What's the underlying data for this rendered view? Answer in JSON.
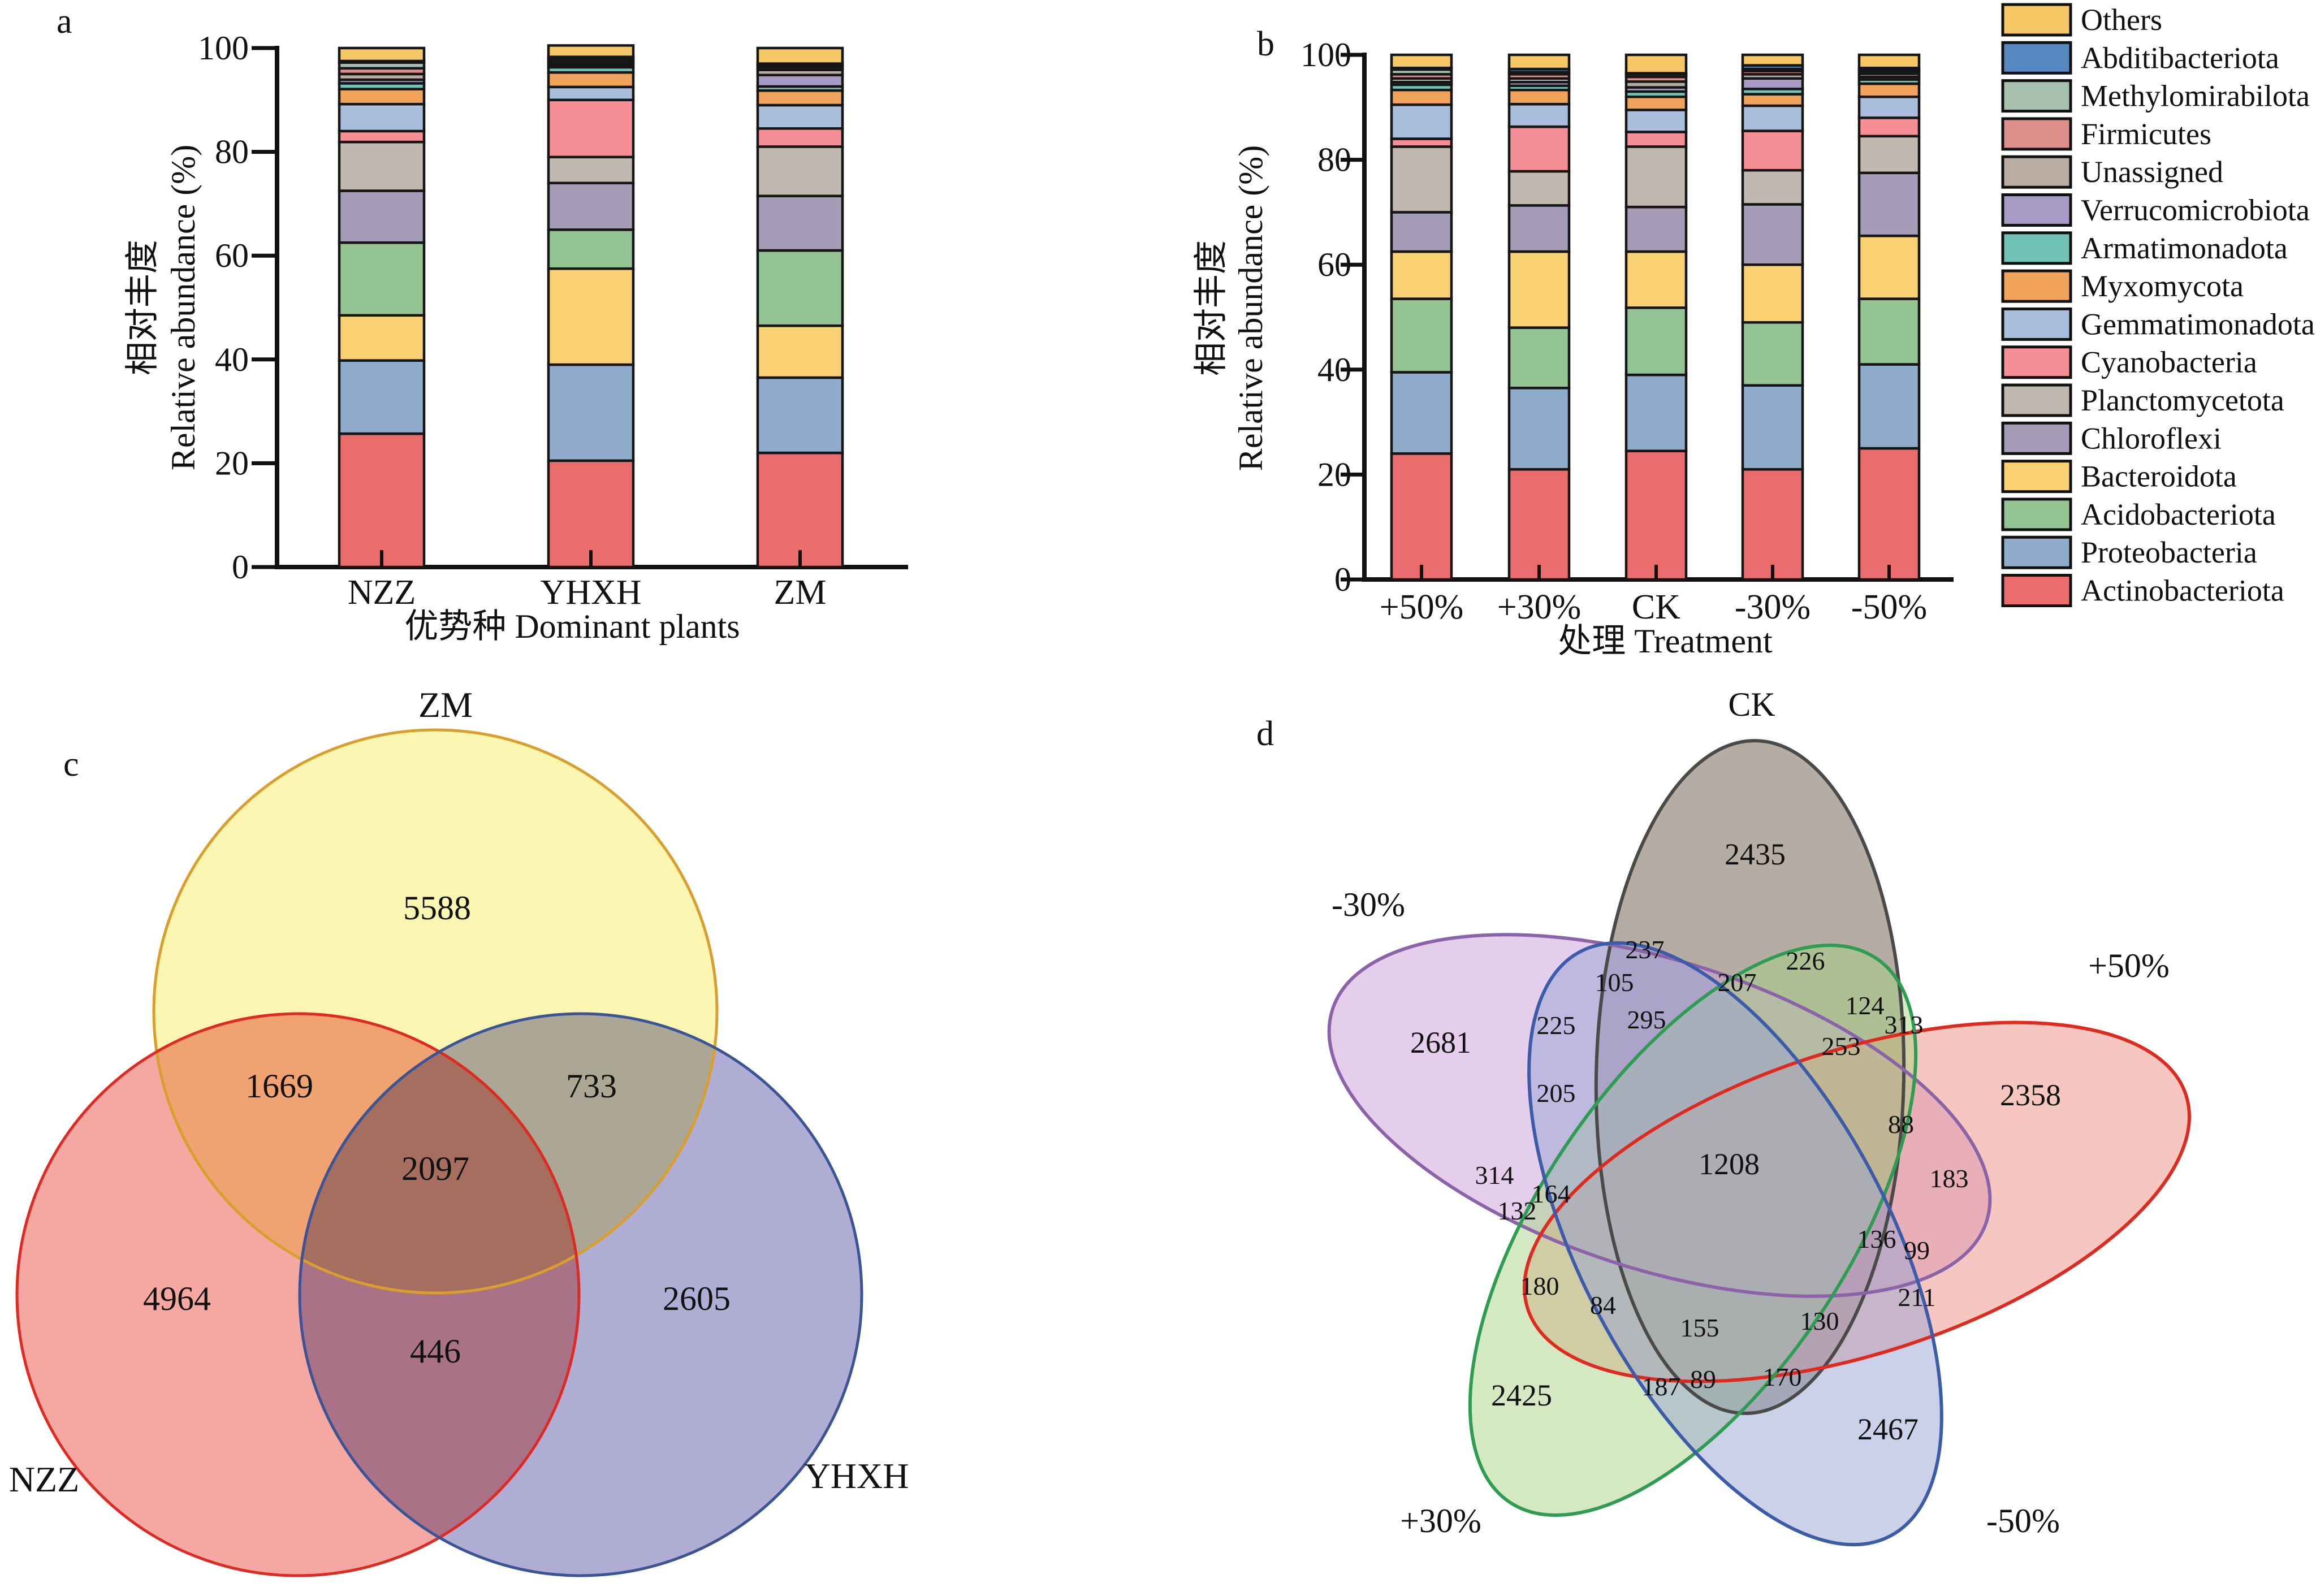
{
  "panels": {
    "a": "a",
    "b": "b",
    "c": "c",
    "d": "d"
  },
  "palette": {
    "Others": "#F6C865",
    "Abditibacteriota": "#5488BE",
    "Methylomirabilota": "#A6BFAE",
    "Firmicutes": "#DE8F8C",
    "Unassigned": "#B9ACA2",
    "Verrucomicrobiota": "#A79BC6",
    "Armatimonadota": "#72C3B5",
    "Myxomycota": "#F2A35B",
    "Gemmatimonadota": "#A8BEDC",
    "Cyanobacteria": "#F68E96",
    "Planctomycetota": "#C1B8B0",
    "Chloroflexi": "#A59CB7",
    "Bacteroidota": "#F9D172",
    "Acidobacteriota": "#94C493",
    "Proteobacteria": "#90ACCC",
    "Actinobacteriota": "#EA6C6D"
  },
  "legend": {
    "items": [
      "Others",
      "Abditibacteriota",
      "Methylomirabilota",
      "Firmicutes",
      "Unassigned",
      "Verrucomicrobiota",
      "Armatimonadota",
      "Myxomycota",
      "Gemmatimonadota",
      "Cyanobacteria",
      "Planctomycetota",
      "Chloroflexi",
      "Bacteroidota",
      "Acidobacteriota",
      "Proteobacteria",
      "Actinobacteriota"
    ]
  },
  "chart_data": [
    {
      "id": "panel-a",
      "type": "bar",
      "stacked": true,
      "xlabel": "优势种 Dominant plants",
      "ylabel_lines": [
        "相对丰度",
        "Relative abundance (%)"
      ],
      "ylim": [
        0,
        100
      ],
      "yticks": [
        0,
        20,
        40,
        60,
        80,
        100
      ],
      "categories": [
        "NZZ",
        "YHXH",
        "ZM"
      ],
      "stack_order": [
        "Actinobacteriota",
        "Proteobacteria",
        "Bacteroidota",
        "Acidobacteriota",
        "Chloroflexi",
        "Planctomycetota",
        "Cyanobacteria",
        "Gemmatimonadota",
        "Myxomycota",
        "Armatimonadota",
        "Verrucomicrobiota",
        "Unassigned",
        "Firmicutes",
        "Methylomirabilota",
        "Abditibacteriota",
        "Others"
      ],
      "values_by_category": {
        "NZZ": [
          25.7,
          14.1,
          8.7,
          14.0,
          10.0,
          9.4,
          2.1,
          5.2,
          2.9,
          1.1,
          0.7,
          1.1,
          1.1,
          1.1,
          0.3,
          2.5
        ],
        "YHXH": [
          20.5,
          18.5,
          18.5,
          7.5,
          9.0,
          5.0,
          11.0,
          2.5,
          2.8,
          1.0,
          0.4,
          0.4,
          0.5,
          0.4,
          0.3,
          2.2
        ],
        "ZM": [
          22.0,
          14.5,
          10.0,
          14.5,
          10.5,
          9.5,
          3.5,
          4.5,
          2.8,
          0.8,
          2.2,
          1.0,
          0.5,
          0.4,
          0.3,
          3.0
        ]
      }
    },
    {
      "id": "panel-b",
      "type": "bar",
      "stacked": true,
      "xlabel": "处理 Treatment",
      "ylabel_lines": [
        "相对丰度",
        "Relative abundance (%)"
      ],
      "ylim": [
        0,
        100
      ],
      "yticks": [
        0,
        20,
        40,
        60,
        80,
        100
      ],
      "categories": [
        "+50%",
        "+30%",
        "CK",
        "-30%",
        "-50%"
      ],
      "stack_order": [
        "Actinobacteriota",
        "Proteobacteria",
        "Acidobacteriota",
        "Bacteroidota",
        "Chloroflexi",
        "Planctomycetota",
        "Cyanobacteria",
        "Gemmatimonadota",
        "Myxomycota",
        "Armatimonadota",
        "Verrucomicrobiota",
        "Unassigned",
        "Firmicutes",
        "Methylomirabilota",
        "Abditibacteriota",
        "Others"
      ],
      "values_by_category": {
        "+50%": [
          24.0,
          15.5,
          14.0,
          9.0,
          7.5,
          12.5,
          1.5,
          6.5,
          2.8,
          1.0,
          0.5,
          0.7,
          0.8,
          0.9,
          0.3,
          2.5
        ],
        "+30%": [
          21.0,
          15.5,
          11.5,
          14.5,
          8.8,
          6.5,
          8.5,
          4.3,
          2.7,
          0.8,
          0.7,
          0.7,
          0.8,
          0.4,
          0.6,
          2.7
        ],
        "CK": [
          24.5,
          14.5,
          12.8,
          10.7,
          8.5,
          11.5,
          2.8,
          4.2,
          2.5,
          1.0,
          0.8,
          1.1,
          0.9,
          0.5,
          0.2,
          3.5
        ],
        "-30%": [
          21.0,
          16.0,
          12.0,
          11.0,
          11.5,
          6.5,
          7.5,
          4.8,
          2.2,
          1.0,
          2.0,
          0.8,
          0.6,
          0.4,
          0.7,
          2.0
        ],
        "-50%": [
          25.0,
          16.0,
          12.5,
          12.0,
          12.0,
          7.0,
          3.5,
          4.0,
          2.5,
          0.8,
          0.5,
          0.6,
          0.4,
          0.4,
          0.3,
          2.5
        ]
      }
    },
    {
      "id": "panel-c",
      "type": "venn",
      "sets": [
        "ZM",
        "NZZ",
        "YHXH"
      ],
      "regions": {
        "ZM_only": 5588,
        "NZZ_only": 4964,
        "YHXH_only": 2605,
        "ZM_NZZ": 1669,
        "ZM_YHXH": 733,
        "NZZ_YHXH": 446,
        "ZM_NZZ_YHXH": 2097
      },
      "set_styles": {
        "ZM": {
          "fill": "#FAF6B2",
          "stroke": "#D99E2B"
        },
        "NZZ": {
          "fill": "#F5A8A2",
          "stroke": "#DE2A22"
        },
        "YHXH": {
          "fill": "#B0ADD4",
          "stroke": "#3A5497"
        }
      }
    },
    {
      "id": "panel-d",
      "type": "venn",
      "sets": [
        "CK",
        "-30%",
        "+50%",
        "+30%",
        "-50%"
      ],
      "unique_counts": {
        "CK": 2435,
        "-30%": 2681,
        "+50%": 2358,
        "+30%": 2425,
        "-50%": 2467
      },
      "center_count": 1208,
      "region_values": [
        2435,
        2681,
        2358,
        2425,
        2467,
        1208,
        237,
        226,
        105,
        207,
        124,
        313,
        225,
        295,
        253,
        205,
        88,
        314,
        164,
        132,
        183,
        136,
        99,
        180,
        84,
        211,
        155,
        130,
        187,
        89,
        170
      ],
      "set_styles": {
        "CK": {
          "fill": "#6B5947",
          "stroke": "#4A4A48"
        },
        "-30%": {
          "fill": "#C99DD9",
          "stroke": "#8A63A9"
        },
        "+50%": {
          "fill": "#ED8F83",
          "stroke": "#DF2A20"
        },
        "+30%": {
          "fill": "#A9D185",
          "stroke": "#2E9C52"
        },
        "-50%": {
          "fill": "#97A3D1",
          "stroke": "#3C5BA8"
        }
      }
    }
  ]
}
